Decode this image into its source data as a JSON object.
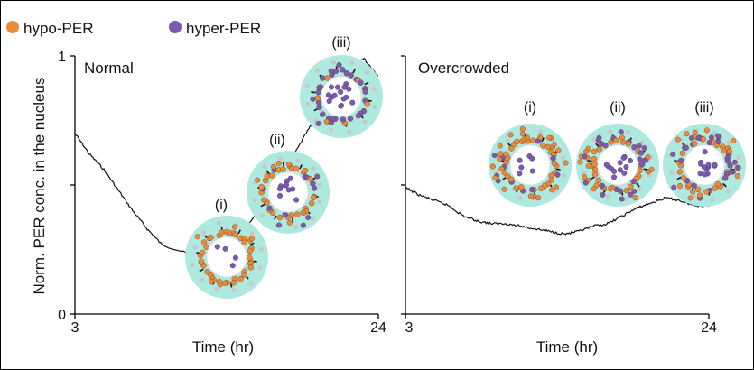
{
  "legend": {
    "items": [
      {
        "label": "hypo-PER",
        "color": "#ea8a3c"
      },
      {
        "label": "hyper-PER",
        "color": "#7b5bb0"
      }
    ]
  },
  "y_axis": {
    "label": "Norm. PER conc. in the nucleus",
    "ticks": [
      "0",
      "1"
    ]
  },
  "panels": {
    "left": {
      "title": "Normal",
      "x_ticks": [
        "3",
        "24"
      ],
      "x_label": "Time (hr)",
      "stage_labels": [
        "(i)",
        "(ii)",
        "(iii)"
      ]
    },
    "right": {
      "title": "Overcrowded",
      "x_ticks": [
        "3",
        "24"
      ],
      "x_label": "Time (hr)",
      "stage_labels": [
        "(i)",
        "(ii)",
        "(iii)"
      ]
    }
  },
  "colors": {
    "cytoplasm": "#aee9df",
    "nucleus": "#ffffff",
    "hypo": "#ea8a3c",
    "hyper": "#7b5bb0",
    "grey_dot": "#c7c7c7",
    "arrow": "#111111",
    "trace": "#111111"
  },
  "chart_data": [
    {
      "type": "line",
      "title": "Normal",
      "xlabel": "Time (hr)",
      "ylabel": "Norm. PER conc. in the nucleus",
      "xlim": [
        3,
        24
      ],
      "ylim": [
        0,
        1
      ],
      "series": [
        {
          "x": [
            3,
            4,
            5,
            6,
            7,
            8,
            9,
            11,
            15,
            17,
            18,
            19,
            20,
            21,
            22,
            23,
            24
          ],
          "y": [
            0.7,
            0.62,
            0.56,
            0.48,
            0.4,
            0.33,
            0.27,
            0.23,
            0.35,
            0.49,
            0.6,
            0.7,
            0.79,
            0.88,
            0.97,
            0.99,
            0.92
          ]
        }
      ]
    },
    {
      "type": "line",
      "title": "Overcrowded",
      "xlabel": "Time (hr)",
      "ylabel": "Norm. PER conc. in the nucleus",
      "xlim": [
        3,
        24
      ],
      "ylim": [
        0,
        1
      ],
      "series": [
        {
          "x": [
            3,
            4,
            5,
            6,
            7,
            8,
            9,
            10,
            11,
            12,
            13,
            14,
            15,
            16,
            17,
            18,
            19,
            20,
            21,
            22,
            23,
            24
          ],
          "y": [
            0.49,
            0.46,
            0.44,
            0.42,
            0.38,
            0.36,
            0.35,
            0.35,
            0.34,
            0.33,
            0.32,
            0.31,
            0.32,
            0.34,
            0.35,
            0.38,
            0.41,
            0.43,
            0.45,
            0.44,
            0.42,
            0.42
          ]
        }
      ]
    }
  ]
}
